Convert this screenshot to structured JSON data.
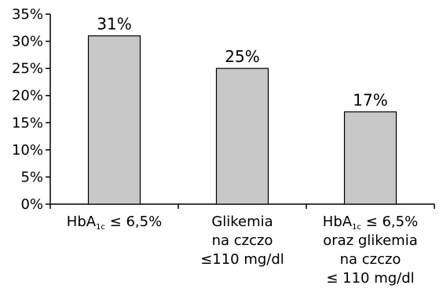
{
  "chart_data": {
    "type": "bar",
    "title": "",
    "xlabel": "",
    "ylabel": "",
    "ylim": [
      0,
      35
    ],
    "yticks": [
      0,
      5,
      10,
      15,
      20,
      25,
      30,
      35
    ],
    "ytick_labels": [
      "0%",
      "5%",
      "10%",
      "15%",
      "20%",
      "25%",
      "30%",
      "35%"
    ],
    "grid": false,
    "legend": "none",
    "bar_color": "#c8c8c8",
    "bar_edge_color": "#000000",
    "categories": [
      [
        "HbA",
        "1c",
        " ≤ 6,5%"
      ],
      [
        "Glikemia",
        "na czczo",
        "≤110 mg/dl"
      ],
      [
        "HbA",
        "1c",
        " ≤ 6,5%",
        "oraz glikemia",
        "na czczo",
        "≤ 110 mg/dl"
      ]
    ],
    "values": [
      31,
      25,
      17
    ],
    "data_labels": [
      "31%",
      "25%",
      "17%"
    ]
  }
}
